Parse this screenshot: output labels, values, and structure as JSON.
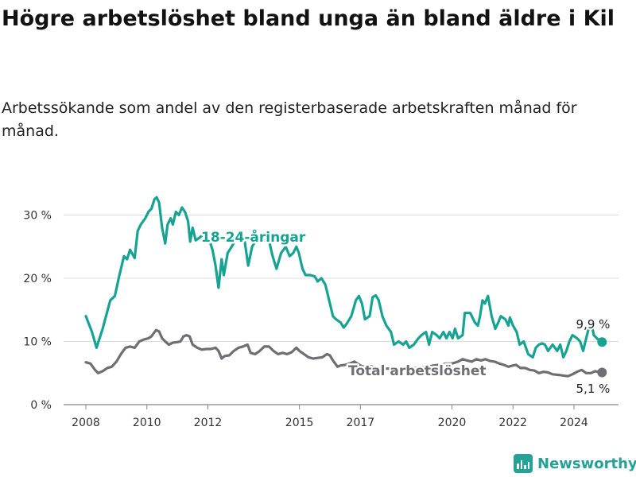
{
  "title": "Högre arbetslöshet bland unga än bland äldre i Kil",
  "subtitle": "Arbetssökande som andel av den registerbaserade arbetskraften månad för månad.",
  "brand": "Newsworthy",
  "chart_data": {
    "type": "line",
    "title": "Högre arbetslöshet bland unga än bland äldre i Kil",
    "subtitle": "Arbetssökande som andel av den registerbaserade arbetskraften månad för månad.",
    "xlabel": "",
    "ylabel": "",
    "xlim": [
      2007.7,
      2025.3
    ],
    "ylim": [
      0,
      33
    ],
    "grid": true,
    "legend": "inline labels",
    "x_ticks": [
      {
        "value": 2008,
        "label": "2008"
      },
      {
        "value": 2010,
        "label": "2010"
      },
      {
        "value": 2012,
        "label": "2012"
      },
      {
        "value": 2015,
        "label": "2015"
      },
      {
        "value": 2017,
        "label": "2017"
      },
      {
        "value": 2020,
        "label": "2020"
      },
      {
        "value": 2022,
        "label": "2022"
      },
      {
        "value": 2024,
        "label": "2024"
      }
    ],
    "y_ticks": [
      {
        "value": 0,
        "label": "0 %"
      },
      {
        "value": 10,
        "label": "10 %"
      },
      {
        "value": 20,
        "label": "20 %"
      },
      {
        "value": 30,
        "label": "30 %"
      }
    ],
    "series": [
      {
        "name": "18-24-åringar",
        "color": "#16a394",
        "end_label": "9,9 %",
        "points": [
          [
            2008.0,
            14.0
          ],
          [
            2008.2,
            11.5
          ],
          [
            2008.35,
            9.0
          ],
          [
            2008.55,
            12.0
          ],
          [
            2008.8,
            16.5
          ],
          [
            2008.95,
            17.2
          ],
          [
            2009.1,
            20.5
          ],
          [
            2009.25,
            23.5
          ],
          [
            2009.35,
            23.0
          ],
          [
            2009.45,
            24.5
          ],
          [
            2009.6,
            23.2
          ],
          [
            2009.7,
            27.5
          ],
          [
            2009.8,
            28.5
          ],
          [
            2009.95,
            29.5
          ],
          [
            2010.05,
            30.5
          ],
          [
            2010.15,
            31.0
          ],
          [
            2010.25,
            32.5
          ],
          [
            2010.32,
            32.8
          ],
          [
            2010.4,
            32.0
          ],
          [
            2010.5,
            28.0
          ],
          [
            2010.6,
            25.5
          ],
          [
            2010.68,
            28.5
          ],
          [
            2010.78,
            29.5
          ],
          [
            2010.85,
            28.5
          ],
          [
            2010.95,
            30.5
          ],
          [
            2011.05,
            30.0
          ],
          [
            2011.15,
            31.2
          ],
          [
            2011.25,
            30.5
          ],
          [
            2011.35,
            29.0
          ],
          [
            2011.42,
            25.8
          ],
          [
            2011.5,
            28.0
          ],
          [
            2011.6,
            26.0
          ],
          [
            2011.75,
            26.5
          ],
          [
            2011.85,
            27.0
          ],
          [
            2011.95,
            26.5
          ],
          [
            2012.05,
            26.0
          ],
          [
            2012.15,
            24.5
          ],
          [
            2012.25,
            22.0
          ],
          [
            2012.35,
            18.5
          ],
          [
            2012.45,
            23.0
          ],
          [
            2012.52,
            20.5
          ],
          [
            2012.65,
            24.0
          ],
          [
            2012.78,
            25.0
          ],
          [
            2012.9,
            26.0
          ],
          [
            2013.05,
            26.2
          ],
          [
            2013.2,
            26.0
          ],
          [
            2013.32,
            22.0
          ],
          [
            2013.45,
            25.0
          ],
          [
            2013.6,
            26.2
          ],
          [
            2013.8,
            26.0
          ],
          [
            2014.0,
            26.0
          ],
          [
            2014.12,
            23.5
          ],
          [
            2014.25,
            21.5
          ],
          [
            2014.4,
            24.0
          ],
          [
            2014.55,
            25.0
          ],
          [
            2014.68,
            23.5
          ],
          [
            2014.8,
            24.0
          ],
          [
            2014.9,
            25.0
          ],
          [
            2014.98,
            24.0
          ],
          [
            2015.1,
            21.5
          ],
          [
            2015.2,
            20.5
          ],
          [
            2015.35,
            20.5
          ],
          [
            2015.5,
            20.3
          ],
          [
            2015.6,
            19.5
          ],
          [
            2015.72,
            20.0
          ],
          [
            2015.85,
            19.0
          ],
          [
            2015.95,
            17.0
          ],
          [
            2016.1,
            14.0
          ],
          [
            2016.2,
            13.5
          ],
          [
            2016.35,
            13.0
          ],
          [
            2016.45,
            12.2
          ],
          [
            2016.55,
            12.8
          ],
          [
            2016.7,
            14.0
          ],
          [
            2016.85,
            16.5
          ],
          [
            2016.95,
            17.2
          ],
          [
            2017.05,
            16.0
          ],
          [
            2017.15,
            13.5
          ],
          [
            2017.3,
            14.0
          ],
          [
            2017.4,
            17.0
          ],
          [
            2017.5,
            17.3
          ],
          [
            2017.6,
            16.5
          ],
          [
            2017.72,
            14.0
          ],
          [
            2017.85,
            12.5
          ],
          [
            2018.0,
            11.5
          ],
          [
            2018.1,
            9.5
          ],
          [
            2018.25,
            10.0
          ],
          [
            2018.4,
            9.5
          ],
          [
            2018.5,
            10.0
          ],
          [
            2018.6,
            9.0
          ],
          [
            2018.75,
            9.5
          ],
          [
            2018.9,
            10.5
          ],
          [
            2019.0,
            11.0
          ],
          [
            2019.15,
            11.5
          ],
          [
            2019.25,
            9.5
          ],
          [
            2019.35,
            11.5
          ],
          [
            2019.5,
            11.0
          ],
          [
            2019.6,
            10.5
          ],
          [
            2019.72,
            11.5
          ],
          [
            2019.82,
            10.5
          ],
          [
            2019.92,
            11.5
          ],
          [
            2020.02,
            10.5
          ],
          [
            2020.1,
            12.0
          ],
          [
            2020.2,
            10.5
          ],
          [
            2020.35,
            11.0
          ],
          [
            2020.42,
            14.5
          ],
          [
            2020.6,
            14.5
          ],
          [
            2020.75,
            13.0
          ],
          [
            2020.85,
            12.5
          ],
          [
            2020.92,
            14.0
          ],
          [
            2021.0,
            16.5
          ],
          [
            2021.08,
            16.0
          ],
          [
            2021.18,
            17.2
          ],
          [
            2021.3,
            14.0
          ],
          [
            2021.42,
            12.0
          ],
          [
            2021.52,
            13.0
          ],
          [
            2021.6,
            14.0
          ],
          [
            2021.75,
            13.5
          ],
          [
            2021.85,
            12.5
          ],
          [
            2021.9,
            13.8
          ],
          [
            2022.0,
            12.5
          ],
          [
            2022.12,
            11.5
          ],
          [
            2022.22,
            9.5
          ],
          [
            2022.35,
            10.0
          ],
          [
            2022.5,
            8.0
          ],
          [
            2022.65,
            7.5
          ],
          [
            2022.75,
            9.0
          ],
          [
            2022.85,
            9.5
          ],
          [
            2022.95,
            9.7
          ],
          [
            2023.05,
            9.5
          ],
          [
            2023.15,
            8.5
          ],
          [
            2023.3,
            9.5
          ],
          [
            2023.45,
            8.5
          ],
          [
            2023.55,
            9.5
          ],
          [
            2023.65,
            7.5
          ],
          [
            2023.75,
            8.5
          ],
          [
            2023.85,
            10.0
          ],
          [
            2023.95,
            11.0
          ],
          [
            2024.1,
            10.5
          ],
          [
            2024.2,
            10.0
          ],
          [
            2024.3,
            8.5
          ],
          [
            2024.45,
            11.5
          ],
          [
            2024.55,
            13.5
          ],
          [
            2024.65,
            11.0
          ],
          [
            2024.75,
            10.5
          ],
          [
            2024.85,
            10.0
          ],
          [
            2024.92,
            9.9
          ]
        ]
      },
      {
        "name": "Total arbetslöshet",
        "color": "#6e6e73",
        "end_label": "5,1 %",
        "points": [
          [
            2008.0,
            6.7
          ],
          [
            2008.15,
            6.5
          ],
          [
            2008.3,
            5.5
          ],
          [
            2008.4,
            5.0
          ],
          [
            2008.55,
            5.3
          ],
          [
            2008.7,
            5.8
          ],
          [
            2008.85,
            6.0
          ],
          [
            2009.0,
            6.8
          ],
          [
            2009.15,
            8.0
          ],
          [
            2009.3,
            9.0
          ],
          [
            2009.45,
            9.2
          ],
          [
            2009.6,
            9.0
          ],
          [
            2009.75,
            10.0
          ],
          [
            2009.9,
            10.3
          ],
          [
            2010.05,
            10.5
          ],
          [
            2010.15,
            10.8
          ],
          [
            2010.3,
            11.8
          ],
          [
            2010.4,
            11.6
          ],
          [
            2010.5,
            10.5
          ],
          [
            2010.6,
            10.0
          ],
          [
            2010.72,
            9.5
          ],
          [
            2010.85,
            9.8
          ],
          [
            2011.0,
            9.9
          ],
          [
            2011.1,
            10.0
          ],
          [
            2011.2,
            10.8
          ],
          [
            2011.3,
            11.0
          ],
          [
            2011.4,
            10.8
          ],
          [
            2011.5,
            9.5
          ],
          [
            2011.65,
            9.0
          ],
          [
            2011.8,
            8.7
          ],
          [
            2011.95,
            8.8
          ],
          [
            2012.1,
            8.8
          ],
          [
            2012.25,
            9.0
          ],
          [
            2012.35,
            8.5
          ],
          [
            2012.45,
            7.3
          ],
          [
            2012.55,
            7.7
          ],
          [
            2012.7,
            7.8
          ],
          [
            2012.85,
            8.5
          ],
          [
            2013.0,
            9.0
          ],
          [
            2013.15,
            9.2
          ],
          [
            2013.3,
            9.5
          ],
          [
            2013.4,
            8.2
          ],
          [
            2013.55,
            8.0
          ],
          [
            2013.7,
            8.5
          ],
          [
            2013.85,
            9.2
          ],
          [
            2014.0,
            9.2
          ],
          [
            2014.15,
            8.5
          ],
          [
            2014.3,
            8.0
          ],
          [
            2014.45,
            8.2
          ],
          [
            2014.6,
            8.0
          ],
          [
            2014.75,
            8.3
          ],
          [
            2014.9,
            9.0
          ],
          [
            2015.0,
            8.5
          ],
          [
            2015.15,
            8.0
          ],
          [
            2015.3,
            7.5
          ],
          [
            2015.45,
            7.3
          ],
          [
            2015.6,
            7.4
          ],
          [
            2015.75,
            7.5
          ],
          [
            2015.9,
            8.0
          ],
          [
            2016.0,
            7.8
          ],
          [
            2016.1,
            7.0
          ],
          [
            2016.25,
            6.0
          ],
          [
            2016.35,
            6.2
          ],
          [
            2016.5,
            6.3
          ],
          [
            2016.65,
            6.5
          ],
          [
            2016.8,
            6.8
          ],
          [
            2016.9,
            6.5
          ],
          [
            2017.0,
            6.2
          ],
          [
            2017.1,
            6.0
          ],
          [
            2017.25,
            6.2
          ],
          [
            2017.4,
            6.0
          ],
          [
            2017.55,
            5.8
          ],
          [
            2017.7,
            5.8
          ],
          [
            2017.85,
            5.7
          ],
          [
            2018.0,
            5.7
          ],
          [
            2018.2,
            5.6
          ],
          [
            2018.4,
            5.8
          ],
          [
            2018.6,
            5.7
          ],
          [
            2018.8,
            5.8
          ],
          [
            2019.0,
            5.9
          ],
          [
            2019.2,
            6.0
          ],
          [
            2019.4,
            6.2
          ],
          [
            2019.6,
            6.3
          ],
          [
            2019.8,
            6.5
          ],
          [
            2020.0,
            6.5
          ],
          [
            2020.2,
            6.8
          ],
          [
            2020.35,
            7.2
          ],
          [
            2020.5,
            7.0
          ],
          [
            2020.65,
            6.8
          ],
          [
            2020.8,
            7.2
          ],
          [
            2020.95,
            7.0
          ],
          [
            2021.1,
            7.2
          ],
          [
            2021.25,
            6.9
          ],
          [
            2021.4,
            6.8
          ],
          [
            2021.55,
            6.5
          ],
          [
            2021.7,
            6.3
          ],
          [
            2021.85,
            6.0
          ],
          [
            2022.0,
            6.2
          ],
          [
            2022.1,
            6.3
          ],
          [
            2022.25,
            5.8
          ],
          [
            2022.4,
            5.8
          ],
          [
            2022.55,
            5.5
          ],
          [
            2022.7,
            5.4
          ],
          [
            2022.85,
            5.0
          ],
          [
            2023.0,
            5.2
          ],
          [
            2023.15,
            5.1
          ],
          [
            2023.3,
            4.8
          ],
          [
            2023.5,
            4.7
          ],
          [
            2023.65,
            4.6
          ],
          [
            2023.8,
            4.5
          ],
          [
            2023.95,
            4.8
          ],
          [
            2024.1,
            5.2
          ],
          [
            2024.25,
            5.5
          ],
          [
            2024.4,
            5.0
          ],
          [
            2024.55,
            5.0
          ],
          [
            2024.7,
            5.3
          ],
          [
            2024.85,
            5.1
          ],
          [
            2024.92,
            5.1
          ]
        ]
      }
    ],
    "annotations": [
      {
        "text": "18-24-åringar",
        "series": 0
      },
      {
        "text": "Total arbetslöshet",
        "series": 1
      }
    ]
  }
}
